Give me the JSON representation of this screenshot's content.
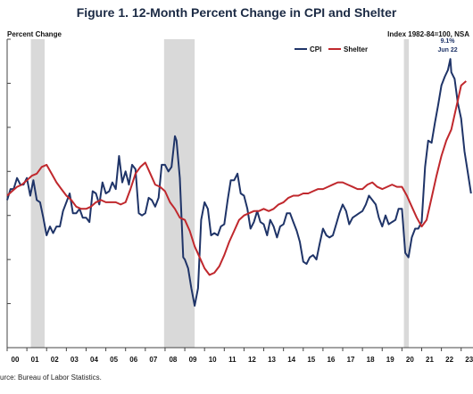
{
  "chart_data": {
    "type": "line",
    "title": "Figure 1. 12-Month Percent Change in CPI and Shelter",
    "ylabel": "Percent Change",
    "index_note": "Index 1982-84=100, NSA",
    "source": "urce: Bureau of Labor Statistics.",
    "xlim": [
      2000.0,
      2023.6
    ],
    "ylim": [
      -4,
      10
    ],
    "grid": false,
    "legend": "top-center",
    "x_ticks": [
      {
        "x": 2000.0,
        "label": "00"
      },
      {
        "x": 2001.0,
        "label": "01"
      },
      {
        "x": 2002.0,
        "label": "02"
      },
      {
        "x": 2003.0,
        "label": "03"
      },
      {
        "x": 2004.0,
        "label": "04"
      },
      {
        "x": 2005.0,
        "label": "05"
      },
      {
        "x": 2006.0,
        "label": "06"
      },
      {
        "x": 2007.0,
        "label": "07"
      },
      {
        "x": 2008.0,
        "label": "08"
      },
      {
        "x": 2009.0,
        "label": "09"
      },
      {
        "x": 2010.0,
        "label": "10"
      },
      {
        "x": 2011.0,
        "label": "11"
      },
      {
        "x": 2012.0,
        "label": "12"
      },
      {
        "x": 2013.0,
        "label": "13"
      },
      {
        "x": 2014.0,
        "label": "14"
      },
      {
        "x": 2015.0,
        "label": "15"
      },
      {
        "x": 2016.0,
        "label": "16"
      },
      {
        "x": 2017.0,
        "label": "17"
      },
      {
        "x": 2018.0,
        "label": "18"
      },
      {
        "x": 2019.0,
        "label": "19"
      },
      {
        "x": 2020.0,
        "label": "20"
      },
      {
        "x": 2021.0,
        "label": "21"
      },
      {
        "x": 2022.0,
        "label": "22"
      },
      {
        "x": 2023.0,
        "label": "23"
      }
    ],
    "y_ticks": [
      -4,
      -2,
      0,
      2,
      4,
      6,
      8,
      10
    ],
    "recessions": [
      [
        2001.2,
        2001.9
      ],
      [
        2007.95,
        2009.5
      ],
      [
        2020.1,
        2020.35
      ]
    ],
    "annotation": {
      "lines": [
        "9.1%",
        "Jun 22"
      ],
      "x": 2022.45,
      "y": 9.06
    },
    "series": [
      {
        "name": "CPI",
        "color": "#1f3468",
        "points": [
          [
            2000.0,
            2.7
          ],
          [
            2000.17,
            3.2
          ],
          [
            2000.33,
            3.2
          ],
          [
            2000.5,
            3.7
          ],
          [
            2000.67,
            3.4
          ],
          [
            2000.83,
            3.4
          ],
          [
            2001.0,
            3.7
          ],
          [
            2001.17,
            2.9
          ],
          [
            2001.33,
            3.6
          ],
          [
            2001.5,
            2.7
          ],
          [
            2001.67,
            2.6
          ],
          [
            2001.83,
            1.9
          ],
          [
            2002.0,
            1.1
          ],
          [
            2002.17,
            1.5
          ],
          [
            2002.33,
            1.2
          ],
          [
            2002.5,
            1.5
          ],
          [
            2002.67,
            1.5
          ],
          [
            2002.83,
            2.2
          ],
          [
            2003.0,
            2.6
          ],
          [
            2003.17,
            3.0
          ],
          [
            2003.33,
            2.1
          ],
          [
            2003.5,
            2.1
          ],
          [
            2003.67,
            2.3
          ],
          [
            2003.83,
            1.9
          ],
          [
            2004.0,
            1.9
          ],
          [
            2004.17,
            1.7
          ],
          [
            2004.33,
            3.1
          ],
          [
            2004.5,
            3.0
          ],
          [
            2004.67,
            2.5
          ],
          [
            2004.83,
            3.5
          ],
          [
            2005.0,
            3.0
          ],
          [
            2005.17,
            3.1
          ],
          [
            2005.33,
            3.5
          ],
          [
            2005.5,
            3.2
          ],
          [
            2005.67,
            4.7
          ],
          [
            2005.83,
            3.5
          ],
          [
            2006.0,
            4.0
          ],
          [
            2006.17,
            3.4
          ],
          [
            2006.33,
            4.3
          ],
          [
            2006.5,
            4.1
          ],
          [
            2006.67,
            2.1
          ],
          [
            2006.83,
            2.0
          ],
          [
            2007.0,
            2.1
          ],
          [
            2007.17,
            2.8
          ],
          [
            2007.33,
            2.7
          ],
          [
            2007.5,
            2.4
          ],
          [
            2007.67,
            2.8
          ],
          [
            2007.83,
            4.3
          ],
          [
            2008.0,
            4.3
          ],
          [
            2008.17,
            4.0
          ],
          [
            2008.33,
            4.2
          ],
          [
            2008.5,
            5.6
          ],
          [
            2008.58,
            5.4
          ],
          [
            2008.75,
            3.7
          ],
          [
            2008.92,
            0.1
          ],
          [
            2009.0,
            0.0
          ],
          [
            2009.17,
            -0.4
          ],
          [
            2009.33,
            -1.3
          ],
          [
            2009.5,
            -2.1
          ],
          [
            2009.67,
            -1.3
          ],
          [
            2009.83,
            1.8
          ],
          [
            2010.0,
            2.6
          ],
          [
            2010.17,
            2.3
          ],
          [
            2010.33,
            1.1
          ],
          [
            2010.5,
            1.2
          ],
          [
            2010.67,
            1.1
          ],
          [
            2010.83,
            1.5
          ],
          [
            2011.0,
            1.6
          ],
          [
            2011.17,
            2.7
          ],
          [
            2011.33,
            3.6
          ],
          [
            2011.5,
            3.6
          ],
          [
            2011.67,
            3.9
          ],
          [
            2011.83,
            3.0
          ],
          [
            2012.0,
            2.9
          ],
          [
            2012.17,
            2.3
          ],
          [
            2012.33,
            1.4
          ],
          [
            2012.5,
            1.7
          ],
          [
            2012.67,
            2.2
          ],
          [
            2012.83,
            1.7
          ],
          [
            2013.0,
            1.6
          ],
          [
            2013.17,
            1.1
          ],
          [
            2013.33,
            1.8
          ],
          [
            2013.5,
            1.5
          ],
          [
            2013.67,
            1.0
          ],
          [
            2013.83,
            1.5
          ],
          [
            2014.0,
            1.6
          ],
          [
            2014.17,
            2.1
          ],
          [
            2014.33,
            2.1
          ],
          [
            2014.5,
            1.7
          ],
          [
            2014.67,
            1.3
          ],
          [
            2014.83,
            0.8
          ],
          [
            2015.0,
            -0.1
          ],
          [
            2015.17,
            -0.2
          ],
          [
            2015.33,
            0.1
          ],
          [
            2015.5,
            0.2
          ],
          [
            2015.67,
            0.0
          ],
          [
            2015.83,
            0.7
          ],
          [
            2016.0,
            1.4
          ],
          [
            2016.17,
            1.1
          ],
          [
            2016.33,
            1.0
          ],
          [
            2016.5,
            1.1
          ],
          [
            2016.67,
            1.6
          ],
          [
            2016.83,
            2.1
          ],
          [
            2017.0,
            2.5
          ],
          [
            2017.17,
            2.2
          ],
          [
            2017.33,
            1.6
          ],
          [
            2017.5,
            1.9
          ],
          [
            2017.67,
            2.0
          ],
          [
            2017.83,
            2.1
          ],
          [
            2018.0,
            2.2
          ],
          [
            2018.17,
            2.5
          ],
          [
            2018.33,
            2.9
          ],
          [
            2018.5,
            2.7
          ],
          [
            2018.67,
            2.5
          ],
          [
            2018.83,
            1.9
          ],
          [
            2019.0,
            1.5
          ],
          [
            2019.17,
            2.0
          ],
          [
            2019.33,
            1.6
          ],
          [
            2019.5,
            1.7
          ],
          [
            2019.67,
            1.8
          ],
          [
            2019.83,
            2.3
          ],
          [
            2020.0,
            2.3
          ],
          [
            2020.17,
            0.3
          ],
          [
            2020.33,
            0.1
          ],
          [
            2020.5,
            1.0
          ],
          [
            2020.67,
            1.4
          ],
          [
            2020.83,
            1.4
          ],
          [
            2021.0,
            1.7
          ],
          [
            2021.17,
            4.2
          ],
          [
            2021.33,
            5.4
          ],
          [
            2021.5,
            5.3
          ],
          [
            2021.67,
            6.2
          ],
          [
            2021.83,
            7.0
          ],
          [
            2022.0,
            7.9
          ],
          [
            2022.17,
            8.3
          ],
          [
            2022.33,
            8.6
          ],
          [
            2022.45,
            9.1
          ],
          [
            2022.5,
            8.5
          ],
          [
            2022.67,
            8.2
          ],
          [
            2022.83,
            7.1
          ],
          [
            2023.0,
            6.4
          ],
          [
            2023.17,
            4.9
          ],
          [
            2023.33,
            4.0
          ],
          [
            2023.5,
            3.0
          ]
        ]
      },
      {
        "name": "Shelter",
        "color": "#c0282d",
        "points": [
          [
            2000.0,
            2.9
          ],
          [
            2000.25,
            3.1
          ],
          [
            2000.5,
            3.3
          ],
          [
            2000.75,
            3.4
          ],
          [
            2001.0,
            3.6
          ],
          [
            2001.25,
            3.8
          ],
          [
            2001.5,
            3.9
          ],
          [
            2001.75,
            4.2
          ],
          [
            2002.0,
            4.3
          ],
          [
            2002.25,
            3.9
          ],
          [
            2002.5,
            3.5
          ],
          [
            2002.75,
            3.2
          ],
          [
            2003.0,
            2.9
          ],
          [
            2003.25,
            2.7
          ],
          [
            2003.5,
            2.4
          ],
          [
            2003.75,
            2.3
          ],
          [
            2004.0,
            2.3
          ],
          [
            2004.25,
            2.4
          ],
          [
            2004.5,
            2.6
          ],
          [
            2004.75,
            2.7
          ],
          [
            2005.0,
            2.6
          ],
          [
            2005.25,
            2.6
          ],
          [
            2005.5,
            2.6
          ],
          [
            2005.75,
            2.5
          ],
          [
            2006.0,
            2.6
          ],
          [
            2006.25,
            3.2
          ],
          [
            2006.5,
            3.9
          ],
          [
            2006.75,
            4.2
          ],
          [
            2007.0,
            4.4
          ],
          [
            2007.25,
            3.9
          ],
          [
            2007.5,
            3.4
          ],
          [
            2007.75,
            3.3
          ],
          [
            2008.0,
            3.1
          ],
          [
            2008.25,
            2.6
          ],
          [
            2008.5,
            2.3
          ],
          [
            2008.75,
            1.9
          ],
          [
            2009.0,
            1.8
          ],
          [
            2009.25,
            1.3
          ],
          [
            2009.5,
            0.6
          ],
          [
            2009.75,
            0.1
          ],
          [
            2010.0,
            -0.4
          ],
          [
            2010.25,
            -0.7
          ],
          [
            2010.5,
            -0.6
          ],
          [
            2010.75,
            -0.3
          ],
          [
            2011.0,
            0.2
          ],
          [
            2011.25,
            0.8
          ],
          [
            2011.5,
            1.3
          ],
          [
            2011.75,
            1.8
          ],
          [
            2012.0,
            2.0
          ],
          [
            2012.25,
            2.1
          ],
          [
            2012.5,
            2.2
          ],
          [
            2012.75,
            2.2
          ],
          [
            2013.0,
            2.3
          ],
          [
            2013.25,
            2.2
          ],
          [
            2013.5,
            2.3
          ],
          [
            2013.75,
            2.5
          ],
          [
            2014.0,
            2.6
          ],
          [
            2014.25,
            2.8
          ],
          [
            2014.5,
            2.9
          ],
          [
            2014.75,
            2.9
          ],
          [
            2015.0,
            3.0
          ],
          [
            2015.25,
            3.0
          ],
          [
            2015.5,
            3.1
          ],
          [
            2015.75,
            3.2
          ],
          [
            2016.0,
            3.2
          ],
          [
            2016.25,
            3.3
          ],
          [
            2016.5,
            3.4
          ],
          [
            2016.75,
            3.5
          ],
          [
            2017.0,
            3.5
          ],
          [
            2017.25,
            3.4
          ],
          [
            2017.5,
            3.3
          ],
          [
            2017.75,
            3.2
          ],
          [
            2018.0,
            3.2
          ],
          [
            2018.25,
            3.4
          ],
          [
            2018.5,
            3.5
          ],
          [
            2018.75,
            3.3
          ],
          [
            2019.0,
            3.2
          ],
          [
            2019.25,
            3.3
          ],
          [
            2019.5,
            3.4
          ],
          [
            2019.75,
            3.3
          ],
          [
            2020.0,
            3.3
          ],
          [
            2020.25,
            2.9
          ],
          [
            2020.5,
            2.4
          ],
          [
            2020.75,
            1.9
          ],
          [
            2021.0,
            1.5
          ],
          [
            2021.25,
            1.8
          ],
          [
            2021.5,
            2.8
          ],
          [
            2021.75,
            3.8
          ],
          [
            2022.0,
            4.7
          ],
          [
            2022.25,
            5.4
          ],
          [
            2022.5,
            5.9
          ],
          [
            2022.75,
            6.9
          ],
          [
            2023.0,
            7.9
          ],
          [
            2023.25,
            8.1
          ]
        ]
      }
    ]
  }
}
